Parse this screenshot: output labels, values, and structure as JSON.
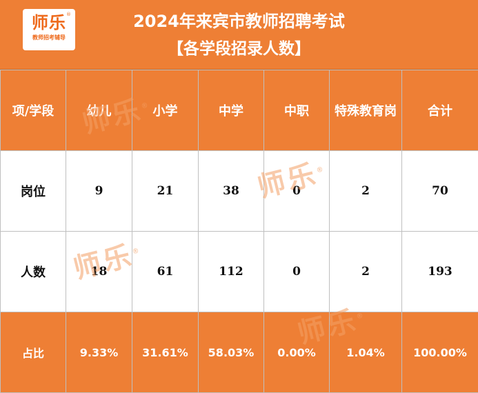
{
  "logo": {
    "main": "师乐",
    "reg": "®",
    "sub": "教师招考辅导"
  },
  "title": {
    "line1": "2024年来宾市教师招聘考试",
    "line2": "【各学段招录人数】"
  },
  "table": {
    "headers": [
      "项/学段",
      "幼儿",
      "小学",
      "中学",
      "中职",
      "特殊教育岗",
      "合计"
    ],
    "rows": [
      {
        "label": "岗位",
        "values": [
          "9",
          "21",
          "38",
          "0",
          "2",
          "70"
        ]
      },
      {
        "label": "人数",
        "values": [
          "18",
          "61",
          "112",
          "0",
          "2",
          "193"
        ]
      }
    ],
    "ratio": {
      "label": "占比",
      "values": [
        "9.33%",
        "31.61%",
        "58.03%",
        "0.00%",
        "1.04%",
        "100.00%"
      ]
    }
  },
  "watermark": {
    "text": "师乐",
    "reg": "®"
  },
  "colors": {
    "accent": "#ee7f35",
    "border": "#bfbfbf",
    "watermark": "#f4a066"
  }
}
